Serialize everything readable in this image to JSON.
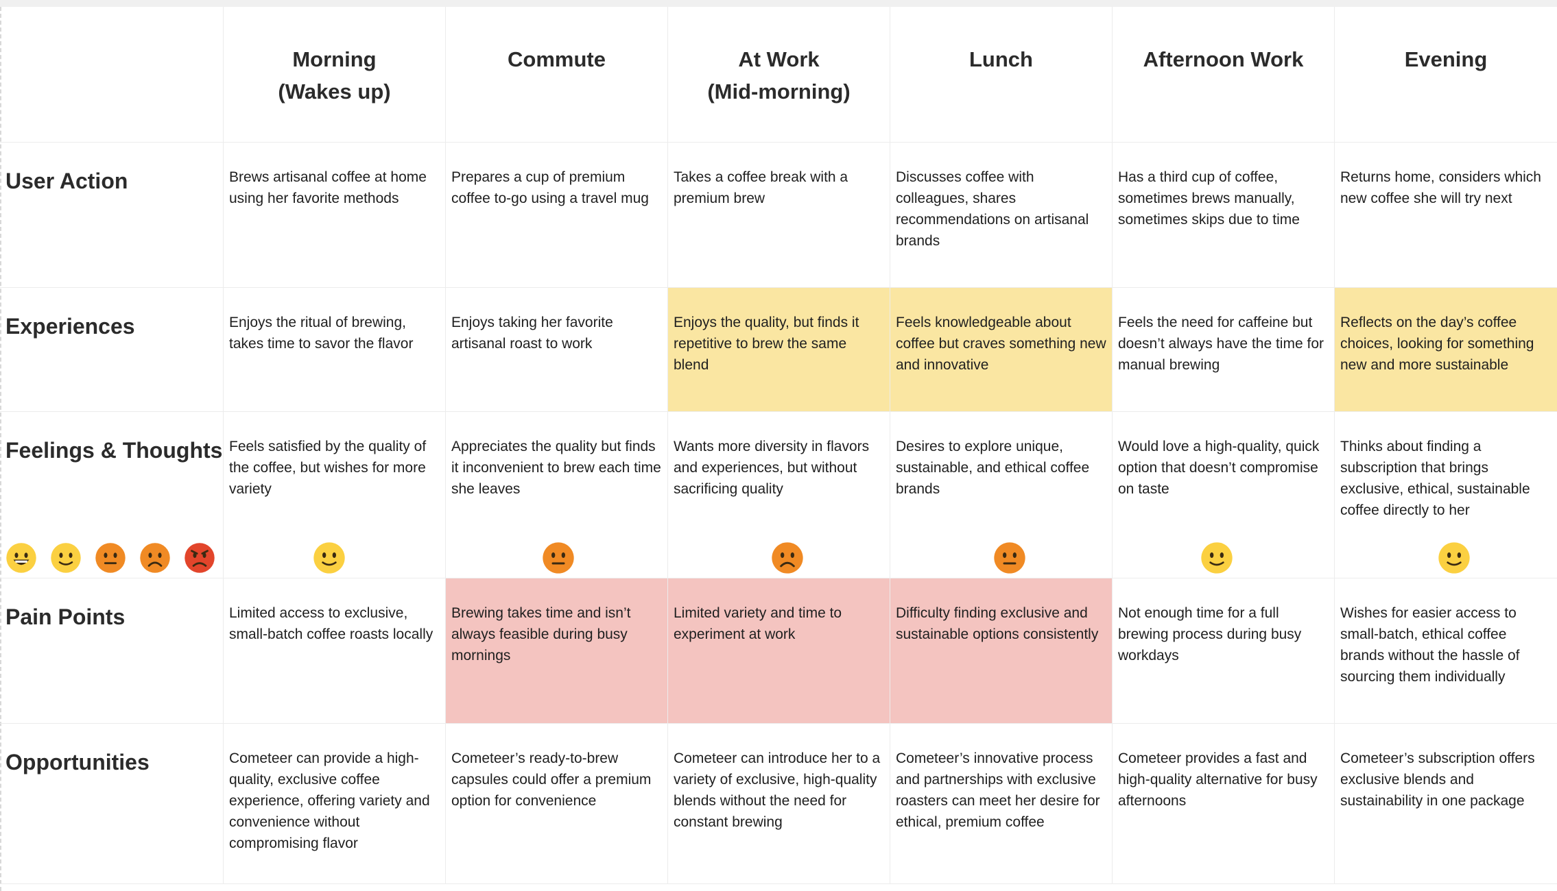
{
  "columns": [
    "Morning\n(Wakes up)",
    "Commute",
    "At Work\n(Mid-morning)",
    "Lunch",
    "Afternoon Work",
    "Evening"
  ],
  "rows": [
    {
      "label": "User Action",
      "cells": [
        "Brews artisanal coffee at home using her favorite methods",
        "Prepares a cup of premium coffee to-go using a travel mug",
        "Takes a coffee break with a premium brew",
        "Discusses coffee with colleagues, shares recommendations on artisanal brands",
        "Has a third cup of coffee, sometimes brews manually, sometimes skips due to time",
        "Returns home, considers which new coffee she will try next"
      ],
      "highlight": [
        "",
        "",
        "",
        "",
        "",
        ""
      ]
    },
    {
      "label": "Experiences",
      "cells": [
        "Enjoys the ritual of brewing, takes time to savor the flavor",
        "Enjoys taking her favorite artisanal roast to work",
        "Enjoys the quality, but finds it repetitive to brew the same blend",
        "Feels knowledgeable about coffee but craves something new and innovative",
        "Feels the need for caffeine but doesn’t always have the time for manual brewing",
        "Reflects on the day’s coffee choices, looking for something new and more sustainable"
      ],
      "highlight": [
        "",
        "",
        "#fae6a2",
        "#fae6a2",
        "",
        "#fae6a2"
      ]
    },
    {
      "label": "Feelings & Thoughts",
      "cells": [
        "Feels satisfied by the quality of the coffee, but wishes for more variety",
        "Appreciates the quality but finds it inconvenient to brew each time she leaves",
        "Wants more diversity in flavors and experiences, but without sacrificing quality",
        "Desires to explore unique, sustainable, and ethical coffee brands",
        "Would love a high-quality, quick option that doesn’t compromise on taste",
        "Thinks about finding a subscription that brings exclusive, ethical, sustainable coffee directly to her"
      ],
      "highlight": [
        "",
        "",
        "",
        "",
        "",
        ""
      ],
      "moods": [
        "slightly-smiling",
        "neutral",
        "frowning",
        "neutral",
        "slightly-smiling",
        "slightly-smiling"
      ],
      "scale": [
        "grinning",
        "slightly-smiling",
        "neutral",
        "frowning",
        "angry"
      ]
    },
    {
      "label": "Pain Points",
      "cells": [
        "Limited access to exclusive, small-batch coffee roasts locally",
        "Brewing takes time and isn’t always feasible during busy mornings",
        "Limited variety and time to experiment at work",
        "Difficulty finding exclusive and sustainable options consistently",
        "Not enough time for a full brewing process during busy workdays",
        "Wishes for easier access to small-batch, ethical coffee brands without the hassle of sourcing them individually"
      ],
      "highlight": [
        "",
        "#f4c4c0",
        "#f4c4c0",
        "#f4c4c0",
        "",
        ""
      ]
    },
    {
      "label": "Opportunities",
      "cells": [
        "Cometeer can provide a high-quality, exclusive coffee experience, offering variety and convenience without compromising flavor",
        "Cometeer’s ready-to-brew capsules could offer a premium option for convenience",
        "Cometeer can introduce her to a variety of exclusive, high-quality blends without the need for constant brewing",
        "Cometeer’s innovative process and partnerships with exclusive roasters can meet her desire for ethical, premium coffee",
        "Cometeer provides a fast and high-quality alternative for busy afternoons",
        "Cometeer’s subscription offers exclusive blends and sustainability in one package"
      ],
      "highlight": [
        "",
        "",
        "",
        "",
        "",
        ""
      ]
    }
  ],
  "colors": {
    "yellow_highlight": "#fae6a2",
    "red_highlight": "#f4c4c0",
    "face_yellow": "#fbd041",
    "face_orange": "#f08a24",
    "face_red": "#e2452b"
  }
}
